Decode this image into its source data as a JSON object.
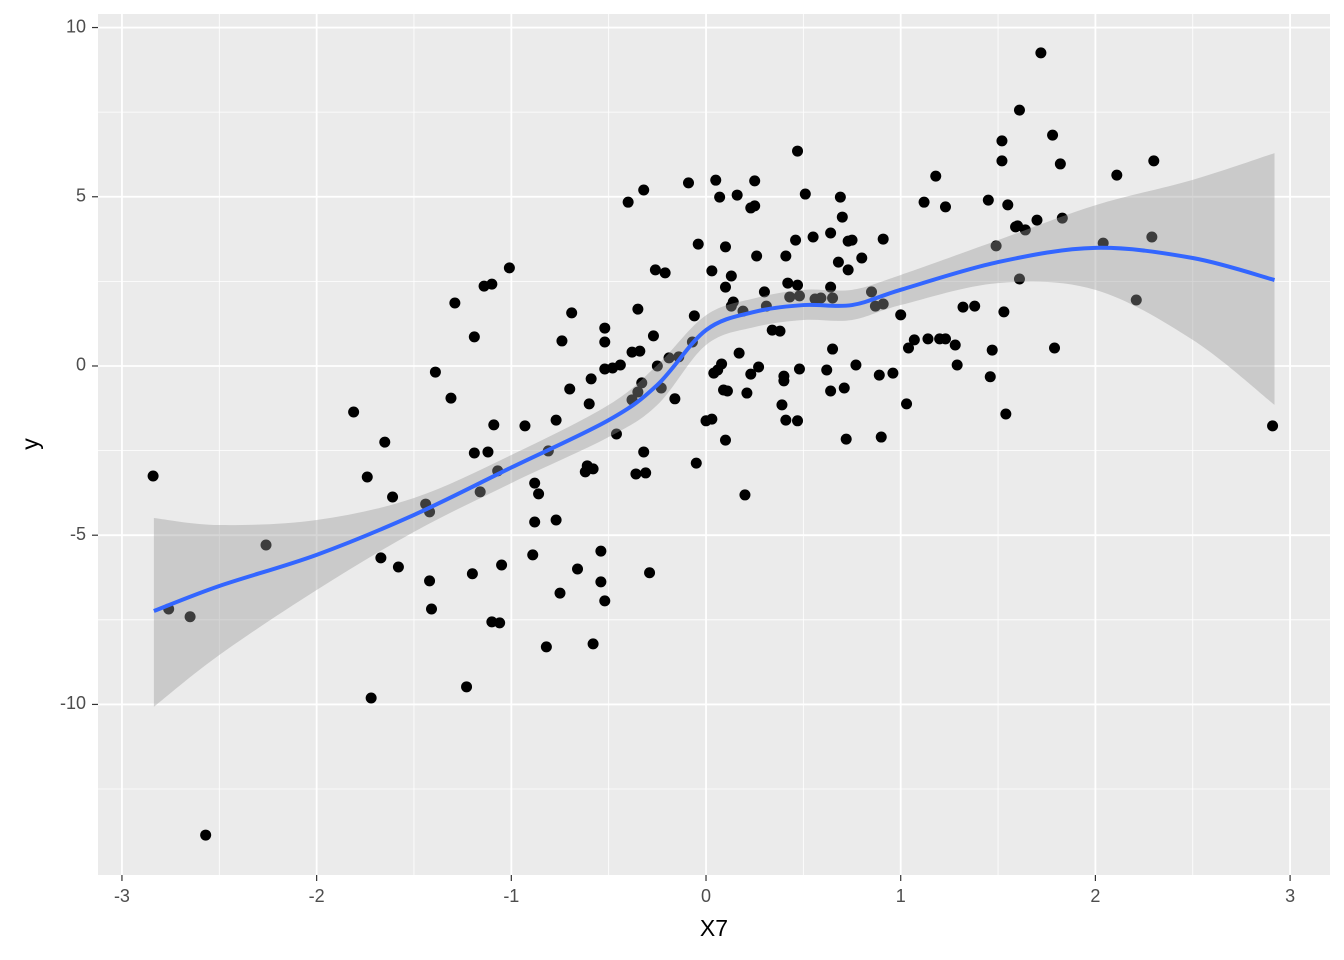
{
  "chart_data": {
    "type": "scatter",
    "x_label": "X7",
    "y_label": "y",
    "xlim": [
      -3.123,
      3.205
    ],
    "ylim": [
      -15.04,
      10.4
    ],
    "xticks": [
      -3,
      -2,
      -1,
      0,
      1,
      2,
      3
    ],
    "yticks": [
      -10,
      -5,
      0,
      5,
      10
    ],
    "x_minor_breaks": [
      -2.5,
      -1.5,
      -0.5,
      0.5,
      1.5,
      2.5
    ],
    "y_minor_breaks": [
      -12.5,
      -7.5,
      -2.5,
      2.5,
      7.5
    ],
    "grid": true,
    "points": {
      "color": "#000000",
      "x": [
        -2.84,
        -2.76,
        -2.65,
        -2.57,
        -2.26,
        -1.81,
        -1.74,
        -1.72,
        -1.67,
        -1.65,
        -1.61,
        -1.58,
        -1.44,
        -1.42,
        -1.42,
        -1.41,
        -1.39,
        -1.31,
        -1.29,
        -1.23,
        -1.2,
        -1.19,
        -1.19,
        -1.16,
        -1.14,
        -1.12,
        -1.1,
        -1.1,
        -1.09,
        -1.07,
        -1.06,
        -1.05,
        -1.01,
        -0.93,
        -0.88,
        -0.88,
        -0.89,
        -0.86,
        -0.82,
        -0.81,
        -0.77,
        -0.77,
        -0.75,
        -0.74,
        -0.7,
        -0.69,
        -0.66,
        -0.62,
        -0.61,
        -0.6,
        -0.59,
        -0.58,
        -0.58,
        -0.54,
        -0.54,
        -0.52,
        -0.52,
        -0.52,
        -0.52,
        -0.48,
        -0.46,
        -0.44,
        -0.4,
        -0.38,
        -0.38,
        -0.36,
        -0.35,
        -0.35,
        -0.34,
        -0.33,
        -0.32,
        -0.32,
        -0.31,
        -0.29,
        -0.27,
        -0.26,
        -0.25,
        -0.23,
        -0.21,
        -0.19,
        -0.16,
        -0.14,
        -0.09,
        -0.07,
        -0.06,
        -0.05,
        -0.04,
        0.0,
        0.03,
        0.03,
        0.04,
        0.05,
        0.06,
        0.07,
        0.08,
        0.09,
        0.1,
        0.1,
        0.1,
        0.11,
        0.13,
        0.13,
        0.14,
        0.16,
        0.17,
        0.19,
        0.2,
        0.21,
        0.23,
        0.23,
        0.25,
        0.25,
        0.26,
        0.27,
        0.3,
        0.31,
        0.34,
        0.38,
        0.39,
        0.4,
        0.4,
        0.41,
        0.41,
        0.42,
        0.43,
        0.46,
        0.47,
        0.47,
        0.47,
        0.48,
        0.48,
        0.51,
        0.55,
        0.56,
        0.59,
        0.62,
        0.64,
        0.64,
        0.64,
        0.65,
        0.65,
        0.68,
        0.69,
        0.7,
        0.71,
        0.72,
        0.73,
        0.73,
        0.75,
        0.77,
        0.8,
        0.85,
        0.87,
        0.89,
        0.9,
        0.91,
        0.91,
        0.96,
        1.0,
        1.03,
        1.04,
        1.07,
        1.12,
        1.14,
        1.18,
        1.2,
        1.23,
        1.23,
        1.28,
        1.29,
        1.32,
        1.38,
        1.45,
        1.46,
        1.47,
        1.49,
        1.52,
        1.52,
        1.53,
        1.54,
        1.55,
        1.59,
        1.6,
        1.61,
        1.61,
        1.64,
        1.7,
        1.72,
        1.78,
        1.79,
        1.82,
        1.83,
        2.04,
        2.11,
        2.21,
        2.29,
        2.3,
        2.91
      ],
      "y": [
        -3.25,
        -7.18,
        -7.41,
        -13.86,
        -5.29,
        -1.36,
        -3.28,
        -9.81,
        -5.67,
        -2.25,
        -3.87,
        -5.94,
        -4.08,
        -4.31,
        -6.35,
        -7.18,
        -0.18,
        -0.95,
        1.86,
        -9.48,
        -6.14,
        0.86,
        -2.57,
        -3.72,
        2.36,
        -2.54,
        2.42,
        -7.56,
        -1.74,
        -3.1,
        -7.59,
        -5.88,
        2.9,
        -1.77,
        -3.46,
        -4.61,
        -5.58,
        -3.78,
        -8.3,
        -2.51,
        -1.6,
        -4.55,
        -6.71,
        0.74,
        -0.68,
        1.57,
        -6.0,
        -3.13,
        -2.95,
        -1.12,
        -0.38,
        -8.21,
        -3.04,
        -5.47,
        -6.38,
        -0.09,
        1.12,
        0.71,
        -6.94,
        -0.06,
        -2.01,
        0.03,
        4.84,
        0.41,
        -1.0,
        -3.19,
        -0.77,
        1.68,
        0.44,
        -0.5,
        5.2,
        -2.54,
        -3.16,
        -6.11,
        0.89,
        2.84,
        0.0,
        -0.65,
        2.75,
        0.24,
        -0.97,
        0.27,
        5.41,
        0.71,
        1.48,
        -2.87,
        3.6,
        -1.62,
        2.81,
        -1.57,
        -0.21,
        5.49,
        -0.12,
        4.99,
        0.06,
        -0.71,
        3.52,
        2.33,
        -2.19,
        -0.74,
        1.77,
        2.66,
        1.89,
        5.05,
        0.38,
        1.62,
        -3.81,
        -0.8,
        -0.24,
        4.67,
        4.73,
        5.47,
        3.25,
        -0.03,
        2.19,
        1.77,
        1.06,
        1.03,
        -1.15,
        -0.3,
        -0.44,
        3.25,
        -1.6,
        2.45,
        2.04,
        3.72,
        2.39,
        6.35,
        -1.62,
        2.07,
        -0.09,
        5.08,
        3.81,
        1.98,
        2.01,
        -0.12,
        2.33,
        3.93,
        -0.74,
        0.5,
        2.01,
        3.07,
        4.99,
        4.4,
        -0.65,
        -2.16,
        2.84,
        3.69,
        3.72,
        0.03,
        3.19,
        2.19,
        1.77,
        -0.27,
        -2.1,
        3.75,
        1.83,
        -0.21,
        1.51,
        -1.12,
        0.53,
        0.77,
        4.84,
        0.8,
        5.61,
        0.8,
        4.7,
        0.8,
        0.62,
        0.03,
        1.74,
        1.77,
        4.9,
        -0.32,
        0.47,
        3.55,
        6.65,
        6.06,
        1.6,
        -1.42,
        4.76,
        4.11,
        4.14,
        7.56,
        2.57,
        4.02,
        4.31,
        9.25,
        6.82,
        0.53,
        5.97,
        4.37,
        3.63,
        5.64,
        1.95,
        3.81,
        6.06,
        -1.77
      ]
    },
    "smooth": {
      "color": "#3366FF",
      "band_color": "#999999",
      "x": [
        -2.836,
        -2.5,
        -2.0,
        -1.5,
        -1.0,
        -0.5,
        -0.25,
        0.0,
        0.25,
        0.5,
        0.75,
        1.0,
        1.5,
        2.0,
        2.5,
        2.92
      ],
      "y": [
        -7.24,
        -6.5,
        -5.58,
        -4.4,
        -3.0,
        -1.6,
        -0.56,
        1.06,
        1.6,
        1.8,
        1.8,
        2.25,
        3.07,
        3.49,
        3.19,
        2.54
      ],
      "lower": [
        -10.07,
        -8.54,
        -6.62,
        -4.9,
        -3.46,
        -2.1,
        -1.15,
        0.62,
        1.15,
        1.36,
        1.36,
        1.8,
        2.45,
        2.25,
        0.77,
        -1.15
      ],
      "upper": [
        -4.49,
        -4.7,
        -4.55,
        -3.9,
        -2.63,
        -1.15,
        0.03,
        1.5,
        2.0,
        2.25,
        2.25,
        2.69,
        3.72,
        4.75,
        5.5,
        6.29
      ]
    }
  }
}
